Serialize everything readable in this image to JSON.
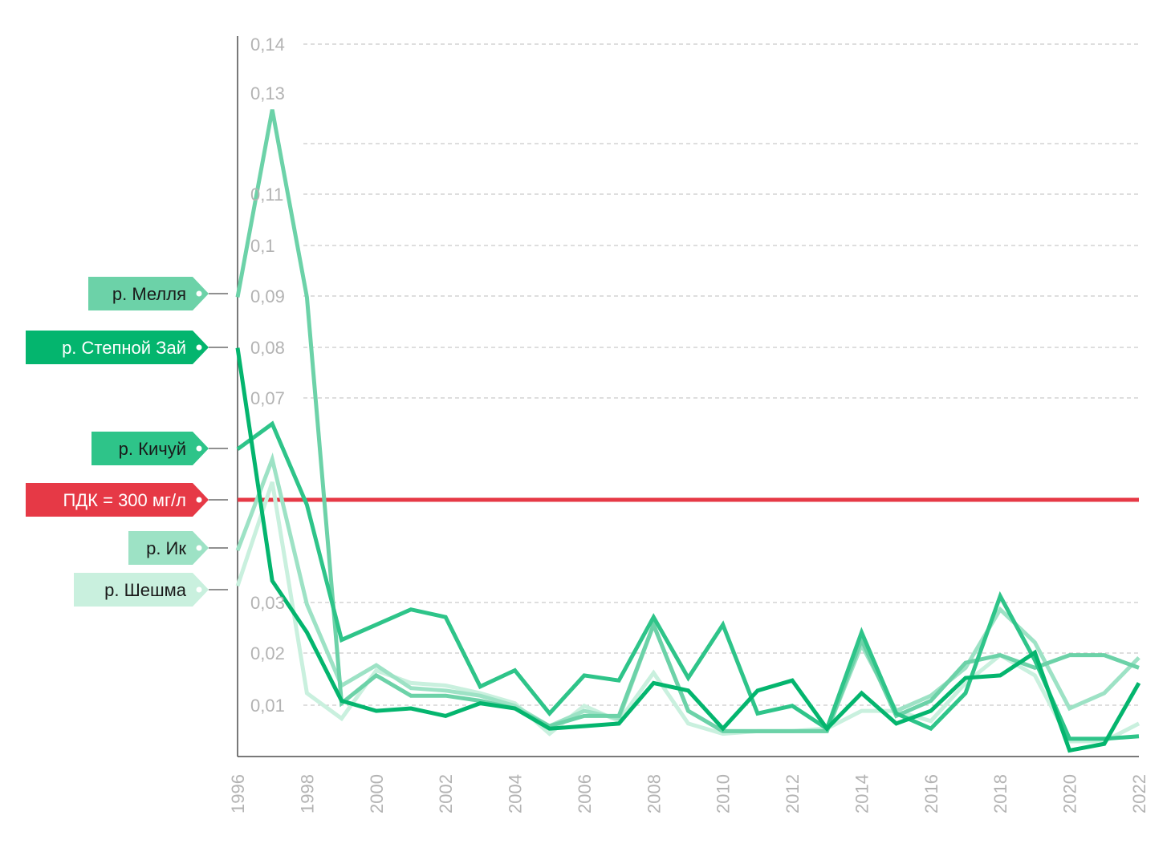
{
  "chart_data": {
    "type": "line",
    "title": "",
    "xlabel": "",
    "ylabel": "",
    "x": [
      1996,
      1997,
      1998,
      1999,
      2000,
      2001,
      2002,
      2003,
      2004,
      2005,
      2006,
      2007,
      2008,
      2009,
      2010,
      2011,
      2012,
      2013,
      2014,
      2015,
      2016,
      2017,
      2018,
      2019,
      2020,
      2021,
      2022
    ],
    "x_tick_labels": [
      "1996",
      "1998",
      "2000",
      "2002",
      "2004",
      "2006",
      "2008",
      "2010",
      "2012",
      "2014",
      "2016",
      "2018",
      "2020",
      "2022"
    ],
    "y_tick_labels": [
      "0,14",
      "0,13",
      "0,11",
      "0,1",
      "0,09",
      "0,08",
      "0,07",
      "0,03",
      "0,02",
      "0,01"
    ],
    "series": [
      {
        "name": "р. Мелля",
        "color": "#6cd2a8",
        "values": [
          0.09,
          0.127,
          0.09,
          0.0105,
          0.016,
          0.012,
          0.012,
          0.011,
          0.0095,
          0.006,
          0.008,
          0.008,
          0.026,
          0.009,
          0.005,
          0.005,
          0.005,
          0.005,
          0.023,
          0.008,
          0.011,
          0.0185,
          0.02,
          0.0175,
          0.02,
          0.02,
          0.0175
        ]
      },
      {
        "name": "р. Степной Зай",
        "color": "#04b56e",
        "values": [
          0.08,
          0.034,
          0.0245,
          0.011,
          0.009,
          0.0095,
          0.008,
          0.0105,
          0.0095,
          0.0055,
          0.006,
          0.0065,
          0.0145,
          0.013,
          0.0055,
          0.013,
          0.015,
          0.0055,
          0.0125,
          0.0065,
          0.009,
          0.0155,
          0.016,
          0.0205,
          0.0012,
          0.0025,
          0.0145
        ]
      },
      {
        "name": "р. Кичуй",
        "color": "#2ec489",
        "values": [
          0.06,
          0.065,
          0.049,
          0.023,
          0.026,
          0.029,
          0.0275,
          0.0138,
          0.017,
          0.0085,
          0.016,
          0.015,
          0.0275,
          0.0155,
          0.026,
          0.0085,
          0.01,
          0.0055,
          0.0245,
          0.0085,
          0.0055,
          0.0125,
          0.031,
          0.019,
          0.0035,
          0.0035,
          0.004
        ]
      },
      {
        "name": "р. Ик",
        "color": "#9de2c5",
        "values": [
          0.04,
          0.058,
          0.03,
          0.014,
          0.018,
          0.0135,
          0.013,
          0.012,
          0.01,
          0.006,
          0.009,
          0.0075,
          0.026,
          0.009,
          0.005,
          0.005,
          0.005,
          0.005,
          0.022,
          0.009,
          0.012,
          0.0175,
          0.029,
          0.0225,
          0.0095,
          0.0125,
          0.0195
        ]
      },
      {
        "name": "р. Шешма",
        "color": "#c9f0de",
        "values": [
          0.033,
          0.0535,
          0.0125,
          0.0075,
          0.017,
          0.0145,
          0.014,
          0.0125,
          0.0105,
          0.0045,
          0.01,
          0.007,
          0.0165,
          0.0065,
          0.0045,
          0.005,
          0.005,
          0.0055,
          0.009,
          0.009,
          0.007,
          0.0145,
          0.02,
          0.016,
          0.003,
          0.003,
          0.0065
        ]
      }
    ],
    "reference_line": {
      "label": "ПДК = 300 мг/л",
      "value": 0.05,
      "color": "#e63946"
    },
    "grid": true
  },
  "tags": [
    {
      "series": 0,
      "label": "р. Мелля",
      "bg": "#6cd2a8",
      "text_color": "#1a1a1a"
    },
    {
      "series": 1,
      "label": "р. Степной Зай",
      "bg": "#04b56e",
      "text_color": "#ffffff"
    },
    {
      "series": 2,
      "label": "р. Кичуй",
      "bg": "#2ec489",
      "text_color": "#1a1a1a"
    },
    {
      "series": -1,
      "label": "ПДК = 300 мг/л",
      "bg": "#e63946",
      "text_color": "#ffffff"
    },
    {
      "series": 3,
      "label": "р. Ик",
      "bg": "#9de2c5",
      "text_color": "#1a1a1a"
    },
    {
      "series": 4,
      "label": "р. Шешма",
      "bg": "#c9f0de",
      "text_color": "#1a1a1a"
    }
  ]
}
